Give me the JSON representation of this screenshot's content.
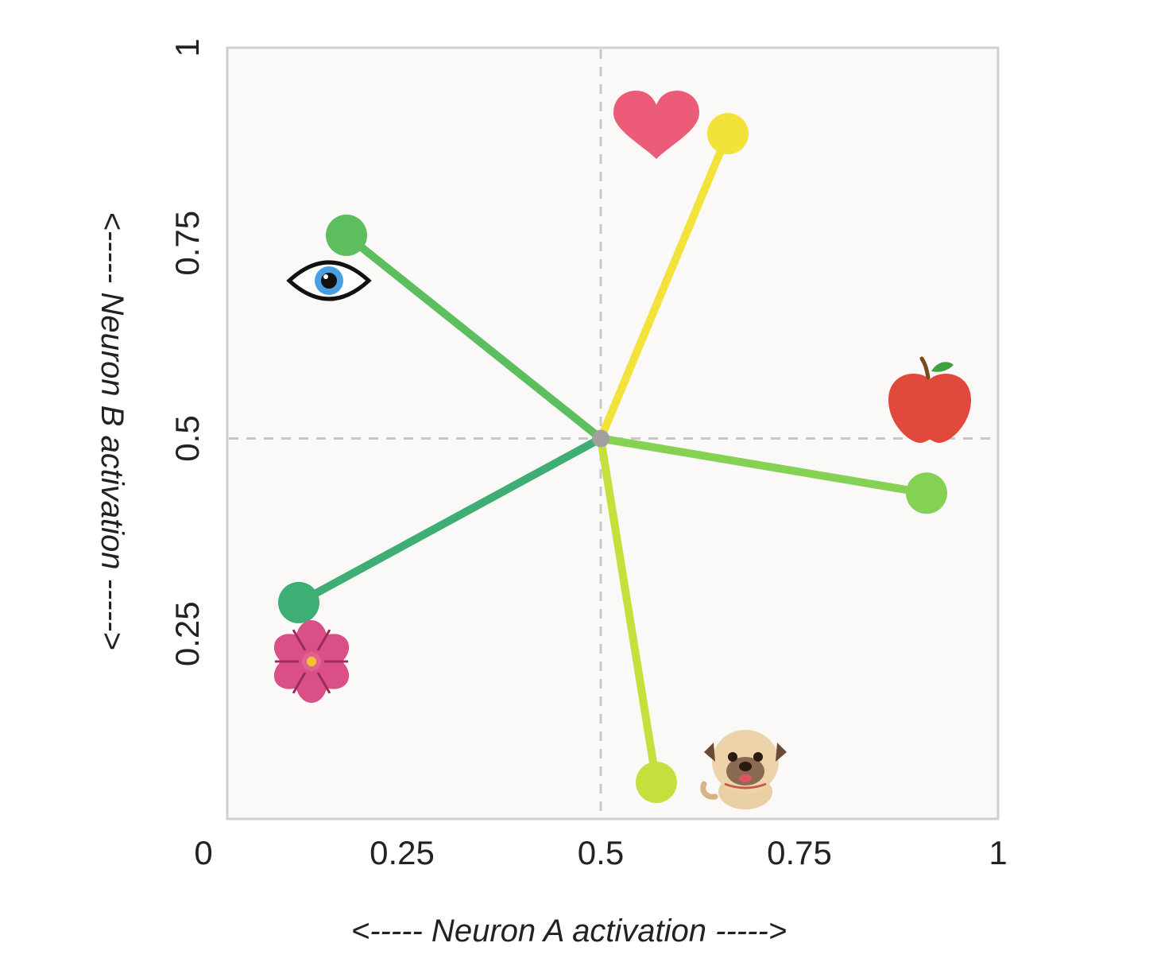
{
  "chart_data": {
    "type": "scatter",
    "title": "",
    "xlabel": "<----- Neuron A activation ----->",
    "ylabel": "<----- Neuron B activation ----->",
    "xlim": [
      0,
      1
    ],
    "ylim": [
      0,
      1
    ],
    "x_ticks": [
      {
        "value": 0,
        "label": "0"
      },
      {
        "value": 0.25,
        "label": "0.25"
      },
      {
        "value": 0.5,
        "label": "0.5"
      },
      {
        "value": 0.75,
        "label": "0.75"
      },
      {
        "value": 1,
        "label": "1"
      }
    ],
    "y_ticks": [
      {
        "value": 0.25,
        "label": "0.25"
      },
      {
        "value": 0.5,
        "label": "0.5"
      },
      {
        "value": 0.75,
        "label": "0.75"
      },
      {
        "value": 1,
        "label": "1"
      }
    ],
    "grid": false,
    "reference_lines": {
      "x": 0.5,
      "y": 0.5,
      "style": "dashed",
      "color": "#c8c8c8"
    },
    "origin": {
      "x": 0.5,
      "y": 0.5,
      "color": "#a0a0a0"
    },
    "background_color": "#faf9f8",
    "frame_color": "#d0d0d0",
    "points": [
      {
        "name": "eye",
        "icon": "eye-icon",
        "x": 0.18,
        "y": 0.76,
        "color": "#5cbe5e"
      },
      {
        "name": "heart",
        "icon": "heart-icon",
        "x": 0.66,
        "y": 0.89,
        "color": "#f2e23a"
      },
      {
        "name": "apple",
        "icon": "apple-icon",
        "x": 0.91,
        "y": 0.43,
        "color": "#84d154"
      },
      {
        "name": "dog",
        "icon": "dog-icon",
        "x": 0.57,
        "y": 0.06,
        "color": "#c6df3c"
      },
      {
        "name": "flower",
        "icon": "flower-icon",
        "x": 0.12,
        "y": 0.29,
        "color": "#3fae74"
      }
    ]
  }
}
